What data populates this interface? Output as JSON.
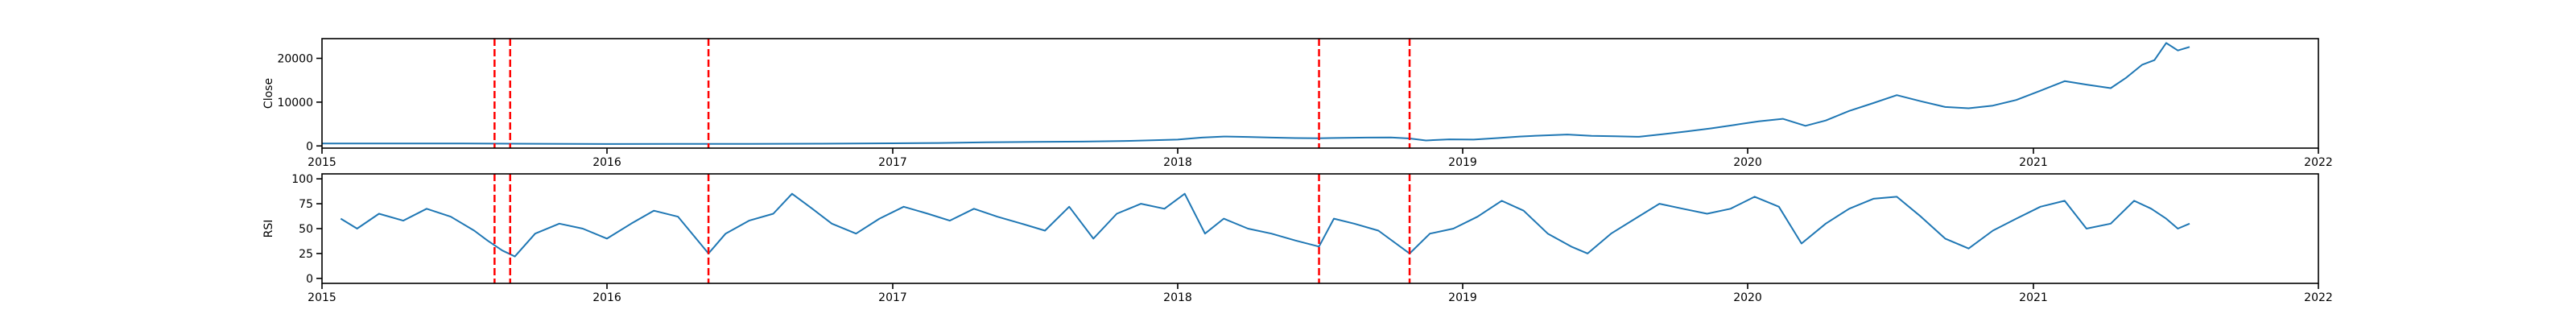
{
  "chart_data": [
    {
      "type": "line",
      "ylabel": "Close",
      "xlim": [
        "2015-01-01",
        "2022-01-01"
      ],
      "ylim": [
        -500,
        24500
      ],
      "xticks": [
        {
          "value": "2015-01-01",
          "label": "2015"
        },
        {
          "value": "2016-01-01",
          "label": "2016"
        },
        {
          "value": "2017-01-01",
          "label": "2017"
        },
        {
          "value": "2018-01-01",
          "label": "2018"
        },
        {
          "value": "2019-01-01",
          "label": "2019"
        },
        {
          "value": "2020-01-01",
          "label": "2020"
        },
        {
          "value": "2021-01-01",
          "label": "2021"
        },
        {
          "value": "2022-01-01",
          "label": "2022"
        }
      ],
      "yticks": [
        {
          "value": 0,
          "label": "0"
        },
        {
          "value": 10000,
          "label": "10000"
        },
        {
          "value": 20000,
          "label": "20000"
        }
      ],
      "series": [
        {
          "color": "#1f77b4",
          "points": [
            [
              "2015-01-01",
              540
            ],
            [
              "2015-04-01",
              560
            ],
            [
              "2015-07-01",
              540
            ],
            [
              "2015-10-01",
              500
            ],
            [
              "2016-01-01",
              430
            ],
            [
              "2016-04-01",
              470
            ],
            [
              "2016-07-01",
              460
            ],
            [
              "2016-10-01",
              520
            ],
            [
              "2017-01-01",
              600
            ],
            [
              "2017-03-01",
              680
            ],
            [
              "2017-05-01",
              820
            ],
            [
              "2017-07-01",
              910
            ],
            [
              "2017-09-01",
              990
            ],
            [
              "2017-11-01",
              1150
            ],
            [
              "2018-01-01",
              1450
            ],
            [
              "2018-02-01",
              1900
            ],
            [
              "2018-03-01",
              2150
            ],
            [
              "2018-04-01",
              2050
            ],
            [
              "2018-05-01",
              1900
            ],
            [
              "2018-06-01",
              1800
            ],
            [
              "2018-07-01",
              1750
            ],
            [
              "2018-08-01",
              1850
            ],
            [
              "2018-09-01",
              1900
            ],
            [
              "2018-10-01",
              1950
            ],
            [
              "2018-10-25",
              1700
            ],
            [
              "2018-11-15",
              1250
            ],
            [
              "2018-12-15",
              1500
            ],
            [
              "2019-01-15",
              1450
            ],
            [
              "2019-02-15",
              1800
            ],
            [
              "2019-03-15",
              2150
            ],
            [
              "2019-04-15",
              2400
            ],
            [
              "2019-05-15",
              2600
            ],
            [
              "2019-06-15",
              2300
            ],
            [
              "2019-07-15",
              2200
            ],
            [
              "2019-08-15",
              2100
            ],
            [
              "2019-09-15",
              2700
            ],
            [
              "2019-10-15",
              3300
            ],
            [
              "2019-11-15",
              4000
            ],
            [
              "2019-12-15",
              4800
            ],
            [
              "2020-01-15",
              5600
            ],
            [
              "2020-02-15",
              6200
            ],
            [
              "2020-03-15",
              4600
            ],
            [
              "2020-04-10",
              5800
            ],
            [
              "2020-05-10",
              8000
            ],
            [
              "2020-06-10",
              9800
            ],
            [
              "2020-07-10",
              11600
            ],
            [
              "2020-08-10",
              10200
            ],
            [
              "2020-09-10",
              8900
            ],
            [
              "2020-10-10",
              8600
            ],
            [
              "2020-11-10",
              9200
            ],
            [
              "2020-12-10",
              10500
            ],
            [
              "2021-01-10",
              12600
            ],
            [
              "2021-02-10",
              14800
            ],
            [
              "2021-03-10",
              14000
            ],
            [
              "2021-04-10",
              13200
            ],
            [
              "2021-04-30",
              15600
            ],
            [
              "2021-05-20",
              18500
            ],
            [
              "2021-06-05",
              19600
            ],
            [
              "2021-06-20",
              23500
            ],
            [
              "2021-07-05",
              21800
            ],
            [
              "2021-07-20",
              22600
            ]
          ]
        }
      ],
      "vlines": [
        "2015-08-10",
        "2015-08-30",
        "2016-05-10",
        "2018-07-01",
        "2018-10-25"
      ],
      "vline_color": "#ff0000"
    },
    {
      "type": "line",
      "ylabel": "RSI",
      "xlim": [
        "2015-01-01",
        "2022-01-01"
      ],
      "ylim": [
        -5,
        105
      ],
      "xticks": [
        {
          "value": "2015-01-01",
          "label": "2015"
        },
        {
          "value": "2016-01-01",
          "label": "2016"
        },
        {
          "value": "2017-01-01",
          "label": "2017"
        },
        {
          "value": "2018-01-01",
          "label": "2018"
        },
        {
          "value": "2019-01-01",
          "label": "2019"
        },
        {
          "value": "2020-01-01",
          "label": "2020"
        },
        {
          "value": "2021-01-01",
          "label": "2021"
        },
        {
          "value": "2022-01-01",
          "label": "2022"
        }
      ],
      "yticks": [
        {
          "value": 0,
          "label": "0"
        },
        {
          "value": 25,
          "label": "25"
        },
        {
          "value": 50,
          "label": "50"
        },
        {
          "value": 75,
          "label": "75"
        },
        {
          "value": 100,
          "label": "100"
        }
      ],
      "series": [
        {
          "color": "#1f77b4",
          "points": [
            [
              "2015-01-25",
              60
            ],
            [
              "2015-02-15",
              50
            ],
            [
              "2015-03-15",
              65
            ],
            [
              "2015-04-15",
              58
            ],
            [
              "2015-05-15",
              70
            ],
            [
              "2015-06-15",
              62
            ],
            [
              "2015-07-15",
              48
            ],
            [
              "2015-08-01",
              38
            ],
            [
              "2015-08-20",
              28
            ],
            [
              "2015-09-05",
              22
            ],
            [
              "2015-10-01",
              45
            ],
            [
              "2015-11-01",
              55
            ],
            [
              "2015-12-01",
              50
            ],
            [
              "2016-01-01",
              40
            ],
            [
              "2016-02-01",
              55
            ],
            [
              "2016-03-01",
              68
            ],
            [
              "2016-04-01",
              62
            ],
            [
              "2016-05-10",
              25
            ],
            [
              "2016-06-01",
              45
            ],
            [
              "2016-07-01",
              58
            ],
            [
              "2016-08-01",
              65
            ],
            [
              "2016-08-25",
              85
            ],
            [
              "2016-09-20",
              70
            ],
            [
              "2016-10-15",
              55
            ],
            [
              "2016-11-15",
              45
            ],
            [
              "2016-12-15",
              60
            ],
            [
              "2017-01-15",
              72
            ],
            [
              "2017-02-15",
              65
            ],
            [
              "2017-03-15",
              58
            ],
            [
              "2017-04-15",
              70
            ],
            [
              "2017-05-15",
              62
            ],
            [
              "2017-06-15",
              55
            ],
            [
              "2017-07-15",
              48
            ],
            [
              "2017-08-15",
              72
            ],
            [
              "2017-09-15",
              40
            ],
            [
              "2017-10-15",
              65
            ],
            [
              "2017-11-15",
              75
            ],
            [
              "2017-12-15",
              70
            ],
            [
              "2018-01-10",
              85
            ],
            [
              "2018-02-05",
              45
            ],
            [
              "2018-03-01",
              60
            ],
            [
              "2018-04-01",
              50
            ],
            [
              "2018-05-01",
              45
            ],
            [
              "2018-06-01",
              38
            ],
            [
              "2018-07-01",
              32
            ],
            [
              "2018-07-20",
              60
            ],
            [
              "2018-08-15",
              55
            ],
            [
              "2018-09-15",
              48
            ],
            [
              "2018-10-25",
              25
            ],
            [
              "2018-11-20",
              45
            ],
            [
              "2018-12-20",
              50
            ],
            [
              "2019-01-20",
              62
            ],
            [
              "2019-02-20",
              78
            ],
            [
              "2019-03-20",
              68
            ],
            [
              "2019-04-20",
              45
            ],
            [
              "2019-05-20",
              32
            ],
            [
              "2019-06-10",
              25
            ],
            [
              "2019-07-10",
              45
            ],
            [
              "2019-08-10",
              60
            ],
            [
              "2019-09-10",
              75
            ],
            [
              "2019-10-10",
              70
            ],
            [
              "2019-11-10",
              65
            ],
            [
              "2019-12-10",
              70
            ],
            [
              "2020-01-10",
              82
            ],
            [
              "2020-02-10",
              72
            ],
            [
              "2020-03-10",
              35
            ],
            [
              "2020-04-10",
              55
            ],
            [
              "2020-05-10",
              70
            ],
            [
              "2020-06-10",
              80
            ],
            [
              "2020-07-10",
              82
            ],
            [
              "2020-08-10",
              62
            ],
            [
              "2020-09-10",
              40
            ],
            [
              "2020-10-10",
              30
            ],
            [
              "2020-11-10",
              48
            ],
            [
              "2020-12-10",
              60
            ],
            [
              "2021-01-10",
              72
            ],
            [
              "2021-02-10",
              78
            ],
            [
              "2021-03-10",
              50
            ],
            [
              "2021-04-10",
              55
            ],
            [
              "2021-05-10",
              78
            ],
            [
              "2021-06-01",
              70
            ],
            [
              "2021-06-20",
              60
            ],
            [
              "2021-07-05",
              50
            ],
            [
              "2021-07-20",
              55
            ]
          ]
        }
      ],
      "vlines": [
        "2015-08-10",
        "2015-08-30",
        "2016-05-10",
        "2018-07-01",
        "2018-10-25"
      ],
      "vline_color": "#ff0000"
    }
  ]
}
